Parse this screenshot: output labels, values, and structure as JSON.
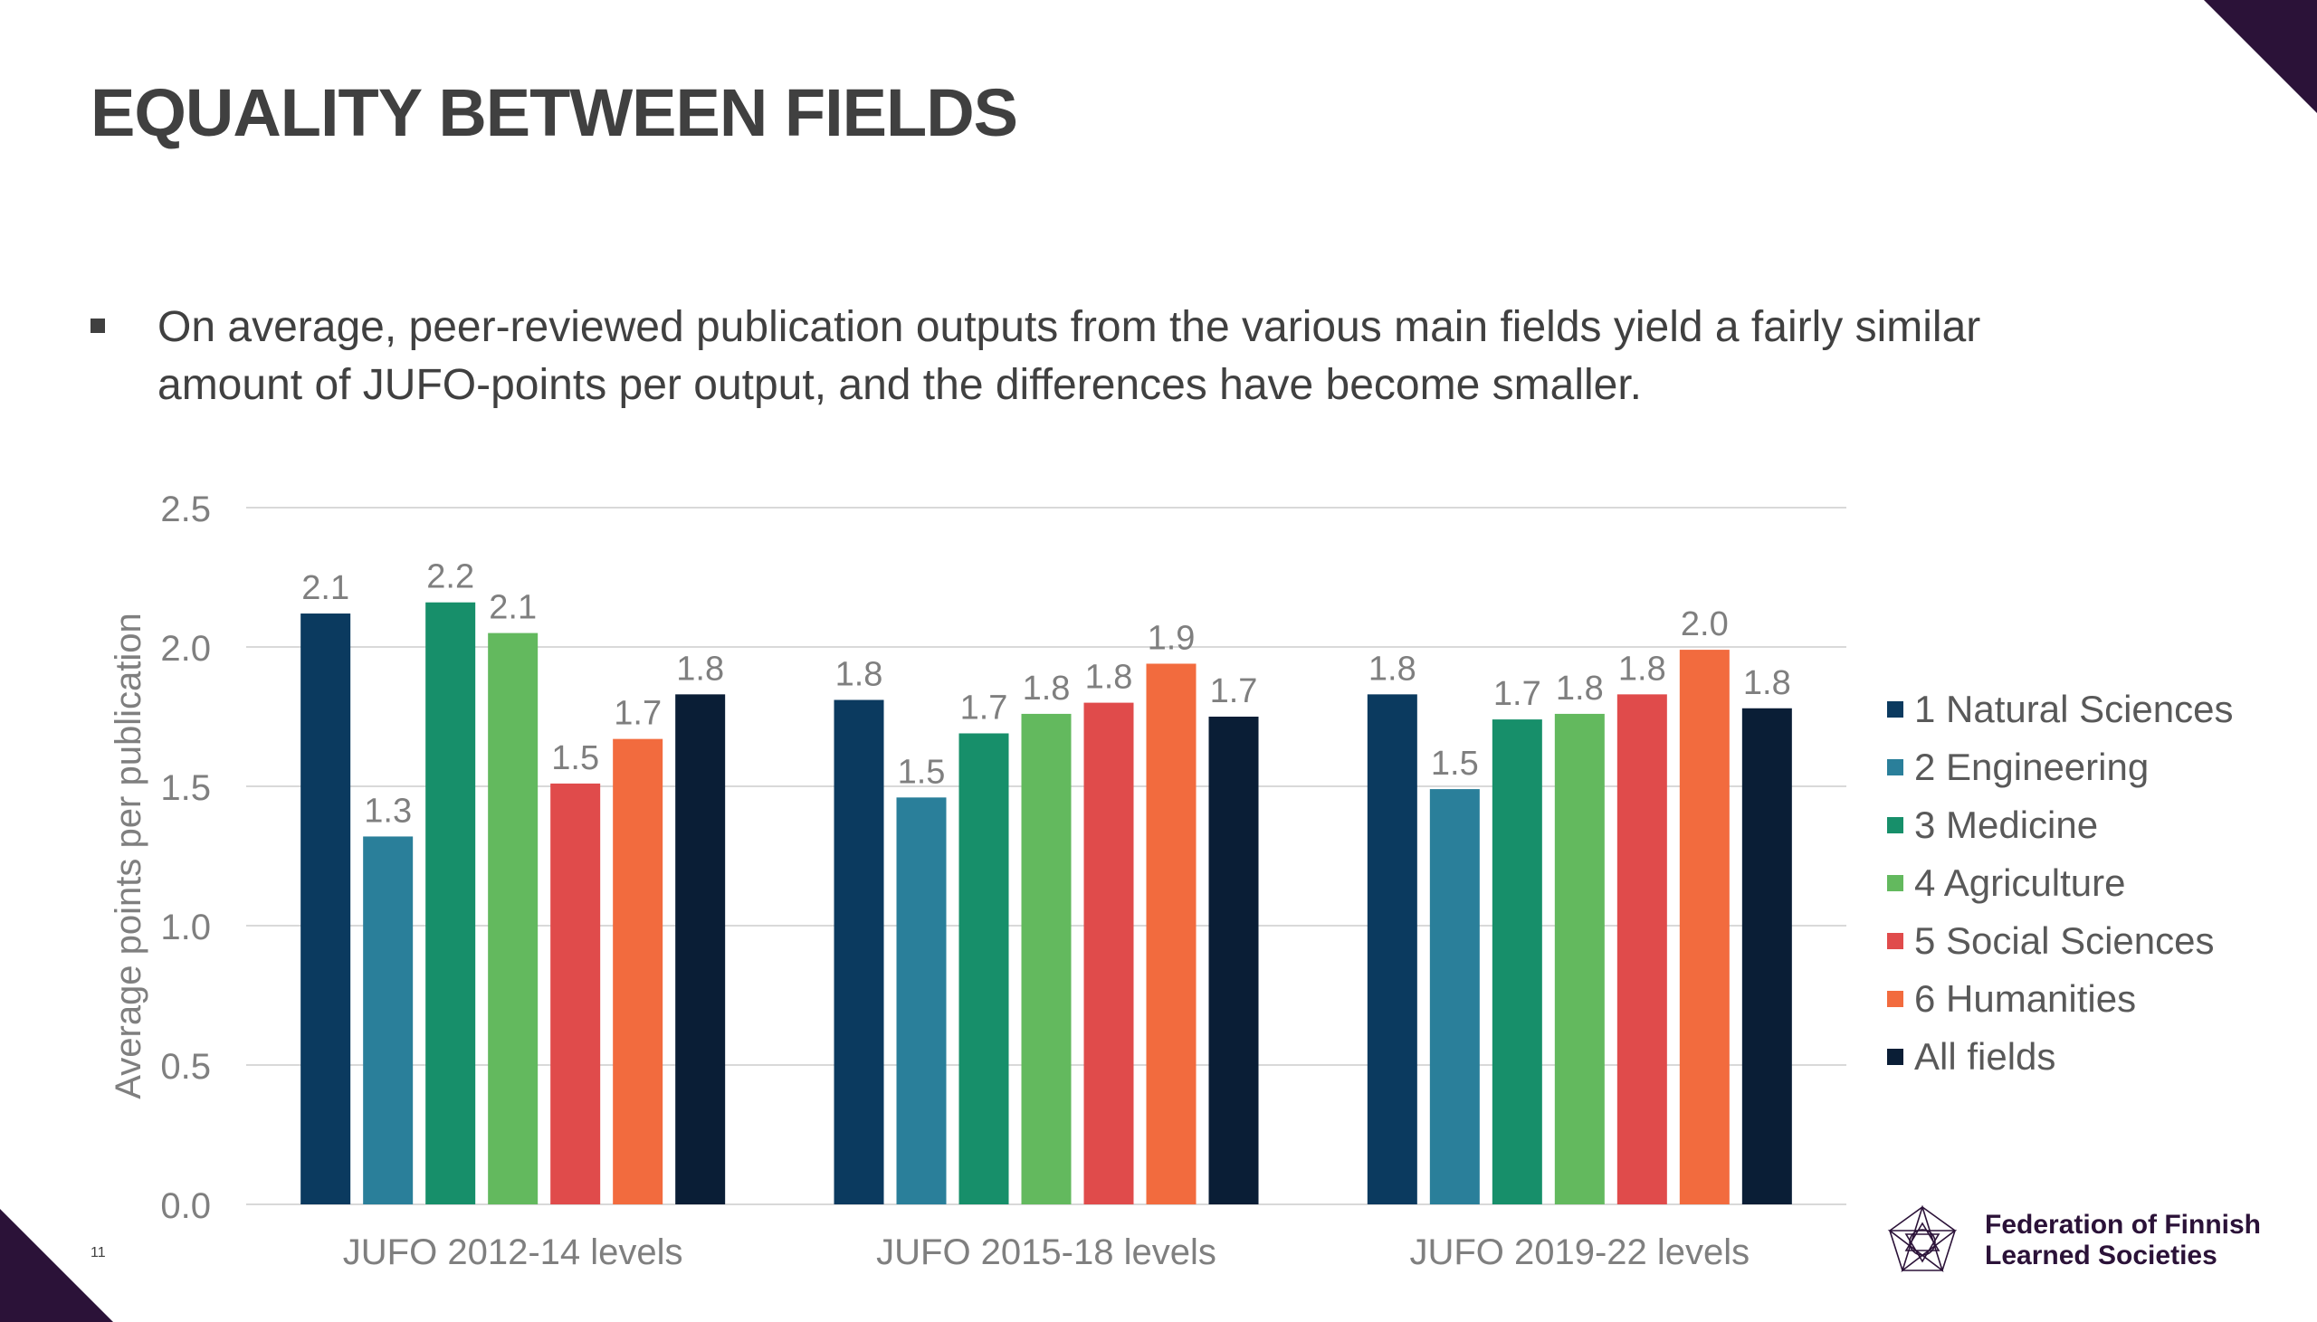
{
  "slide": {
    "title": "EQUALITY BETWEEN FIELDS",
    "bullet": "On average, peer-reviewed publication outputs from the various main fields yield a fairly similar amount of JUFO-points per output, and the differences have become smaller.",
    "slide_number": "11",
    "logo": {
      "line1": "Federation of Finnish",
      "line2": "Learned Societies",
      "icon": "star-polygon-logo-icon"
    },
    "accent_color": "#2b1238"
  },
  "chart_data": {
    "type": "bar",
    "ylabel": "Average points per publication",
    "xlabel": "",
    "ylim": [
      0,
      2.5
    ],
    "yticks": [
      "0.0",
      "0.5",
      "1.0",
      "1.5",
      "2.0",
      "2.5"
    ],
    "grid": true,
    "legend_position": "right",
    "categories": [
      "JUFO 2012-14 levels",
      "JUFO 2015-18 levels",
      "JUFO 2019-22 levels"
    ],
    "series": [
      {
        "name": "1 Natural Sciences",
        "color": "#0b3a5f",
        "values": [
          2.12,
          1.81,
          1.83
        ],
        "labels": [
          "2.1",
          "1.8",
          "1.8"
        ]
      },
      {
        "name": "2 Engineering",
        "color": "#2a7f9a",
        "values": [
          1.32,
          1.46,
          1.49
        ],
        "labels": [
          "1.3",
          "1.5",
          "1.5"
        ]
      },
      {
        "name": "3 Medicine",
        "color": "#178f6a",
        "values": [
          2.16,
          1.69,
          1.74
        ],
        "labels": [
          "2.2",
          "1.7",
          "1.7"
        ]
      },
      {
        "name": "4 Agriculture",
        "color": "#63b95e",
        "values": [
          2.05,
          1.76,
          1.76
        ],
        "labels": [
          "2.1",
          "1.8",
          "1.8"
        ]
      },
      {
        "name": "5 Social Sciences",
        "color": "#e04b4b",
        "values": [
          1.51,
          1.8,
          1.83
        ],
        "labels": [
          "1.5",
          "1.8",
          "1.8"
        ]
      },
      {
        "name": "6 Humanities",
        "color": "#f26b3e",
        "values": [
          1.67,
          1.94,
          1.99
        ],
        "labels": [
          "1.7",
          "1.9",
          "2.0"
        ]
      },
      {
        "name": "All fields",
        "color": "#0a1e36",
        "values": [
          1.83,
          1.75,
          1.78
        ],
        "labels": [
          "1.8",
          "1.7",
          "1.8"
        ]
      }
    ]
  }
}
